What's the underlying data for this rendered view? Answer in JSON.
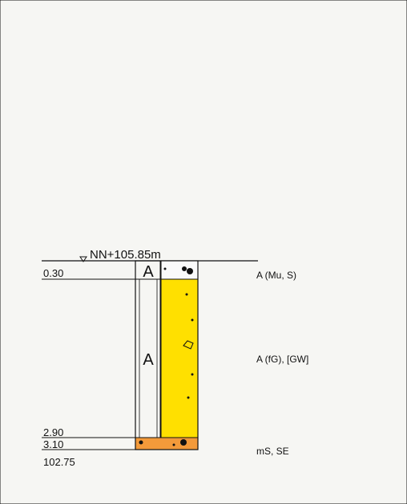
{
  "elevation_label": "NN+105.85m",
  "layers": [
    {
      "depth": "0.30",
      "code": "A",
      "description": "A (Mu, S)"
    },
    {
      "depth": "2.90",
      "code": "A",
      "description": "A (fG), [GW]"
    },
    {
      "depth": "3.10",
      "description": "mS, SE"
    }
  ],
  "bottom_elevation": "102.75"
}
